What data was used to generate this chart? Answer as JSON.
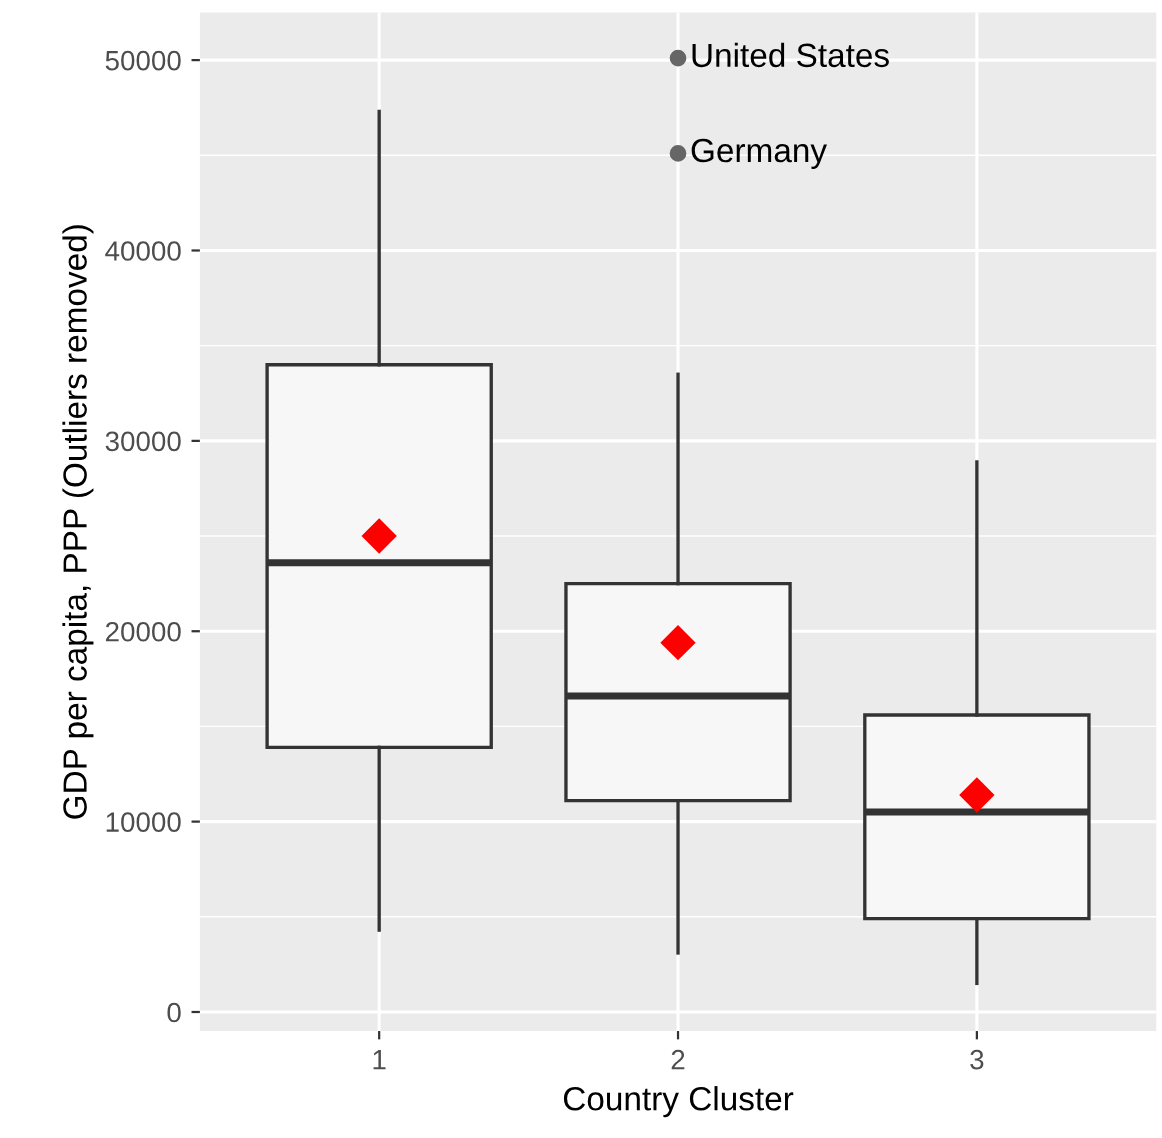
{
  "chart_data": {
    "type": "box",
    "xlabel": "Country Cluster",
    "ylabel": "GDP per capita, PPP (Outliers removed)",
    "categories": [
      "1",
      "2",
      "3"
    ],
    "boxes": [
      {
        "low": 4300,
        "q1": 13900,
        "median": 23600,
        "q3": 34000,
        "high": 47300,
        "mean": 25000
      },
      {
        "low": 3100,
        "q1": 11100,
        "median": 16600,
        "q3": 22500,
        "high": 33500,
        "mean": 19400,
        "outliers": [
          50100,
          45100
        ]
      },
      {
        "low": 1500,
        "q1": 4900,
        "median": 10500,
        "q3": 15600,
        "high": 28900,
        "mean": 11400
      }
    ],
    "ylim": [
      -1000,
      52500
    ],
    "yticks": [
      0,
      10000,
      20000,
      30000,
      40000,
      50000
    ],
    "grid": true,
    "annotations": [
      "United States",
      "Germany"
    ]
  }
}
